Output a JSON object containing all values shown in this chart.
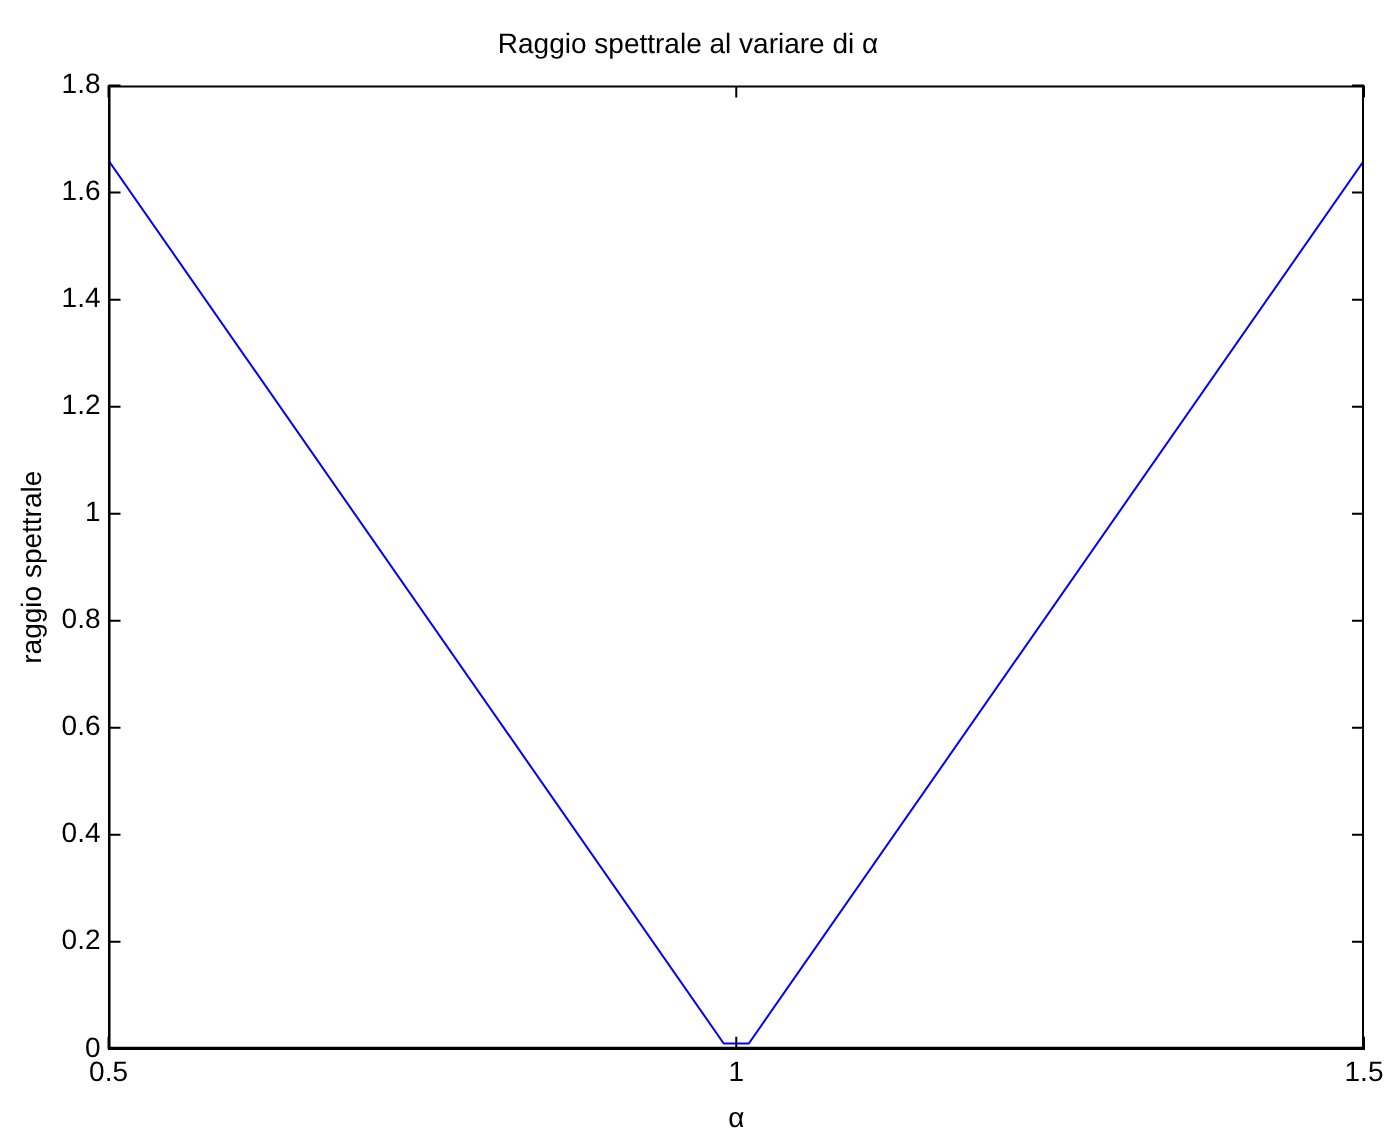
{
  "chart_data": {
    "type": "line",
    "title": "Raggio spettrale al variare di α",
    "xlabel": "α",
    "ylabel": "raggio spettrale",
    "series": [
      {
        "color": "#0000ff",
        "x": [
          0.5,
          0.99,
          1.01,
          1.5
        ],
        "values": [
          1.66,
          0.01,
          0.01,
          1.66
        ]
      }
    ],
    "xlim": [
      0.5,
      1.5
    ],
    "xticks": [
      0.5,
      1,
      1.5
    ],
    "ylim": [
      0,
      1.8
    ],
    "yticks": [
      0,
      0.2,
      0.4,
      0.6,
      0.8,
      1,
      1.2,
      1.4,
      1.6,
      1.8
    ],
    "grid": false,
    "legend": false,
    "marker": "none",
    "line_style": "solid"
  }
}
